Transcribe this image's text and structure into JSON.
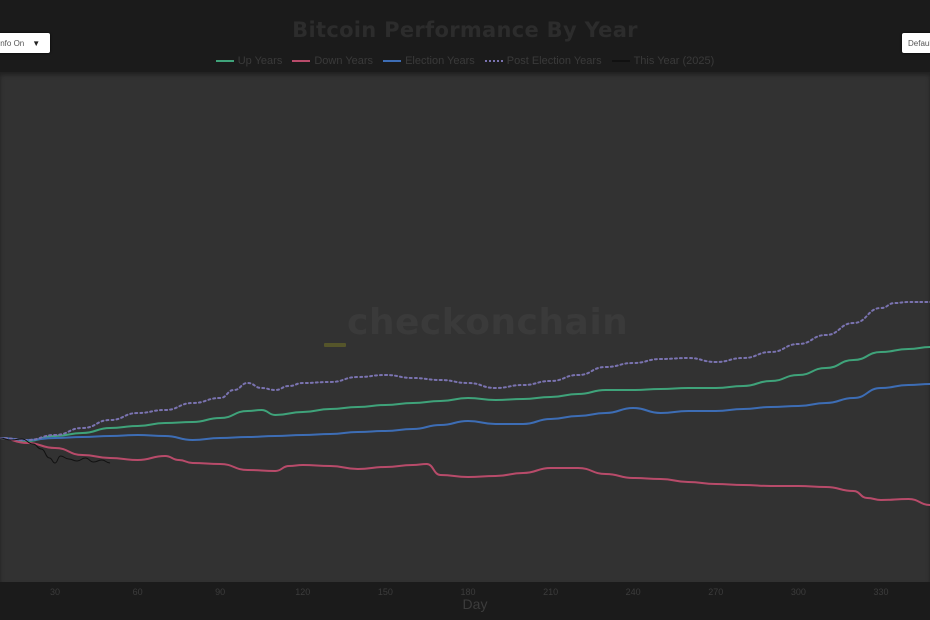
{
  "header": {
    "title": "Bitcoin Performance By Year",
    "left_dropdown": {
      "value": "Info On",
      "caret": "▼"
    },
    "right_dropdown": {
      "value": "Default"
    }
  },
  "watermark": {
    "text": "checkonchain"
  },
  "colors": {
    "page_bg": "#1b1b1b",
    "plot_bg": "#323232",
    "up_years": "#3fa37a",
    "down_years": "#b84b6a",
    "election_years": "#3d6db5",
    "post_election_years": "#7a73b0",
    "this_year": "#111111"
  },
  "legend": [
    {
      "label": "Up Years",
      "color": "#3fa37a",
      "style": "solid"
    },
    {
      "label": "Down Years",
      "color": "#b84b6a",
      "style": "solid"
    },
    {
      "label": "Election Years",
      "color": "#3d6db5",
      "style": "solid"
    },
    {
      "label": "Post Election Years",
      "color": "#7a73b0",
      "style": "dotted"
    },
    {
      "label": "This Year (2025)",
      "color": "#111111",
      "style": "solid"
    }
  ],
  "xaxis": {
    "label": "Day",
    "ticks": [
      "30",
      "60",
      "90",
      "120",
      "150",
      "180",
      "210",
      "240",
      "270",
      "300",
      "330"
    ]
  },
  "chart_data": {
    "type": "line",
    "title": "Bitcoin Performance By Year",
    "xlabel": "Day",
    "ylabel": "",
    "xlim": [
      10,
      348
    ],
    "ylim_note": "no y-axis shown; values are estimated relative performance (arbitrary units, 0 = start level)",
    "ylim": [
      -150,
      365
    ],
    "x_ticks": [
      30,
      60,
      90,
      120,
      150,
      180,
      210,
      240,
      270,
      300,
      330
    ],
    "grid": false,
    "legend_position": "top",
    "series": [
      {
        "name": "Up Years",
        "color": "#3fa37a",
        "style": "solid",
        "points": [
          [
            10,
            0
          ],
          [
            20,
            -3
          ],
          [
            30,
            2
          ],
          [
            40,
            5
          ],
          [
            50,
            10
          ],
          [
            60,
            12
          ],
          [
            70,
            15
          ],
          [
            80,
            16
          ],
          [
            90,
            20
          ],
          [
            100,
            27
          ],
          [
            105,
            28
          ],
          [
            110,
            23
          ],
          [
            120,
            26
          ],
          [
            130,
            29
          ],
          [
            140,
            31
          ],
          [
            150,
            33
          ],
          [
            160,
            35
          ],
          [
            170,
            37
          ],
          [
            180,
            40
          ],
          [
            190,
            38
          ],
          [
            200,
            39
          ],
          [
            210,
            41
          ],
          [
            220,
            44
          ],
          [
            230,
            48
          ],
          [
            240,
            48
          ],
          [
            250,
            49
          ],
          [
            260,
            50
          ],
          [
            270,
            50
          ],
          [
            280,
            52
          ],
          [
            290,
            57
          ],
          [
            300,
            63
          ],
          [
            310,
            70
          ],
          [
            320,
            78
          ],
          [
            330,
            86
          ],
          [
            340,
            89
          ],
          [
            348,
            91
          ]
        ]
      },
      {
        "name": "Down Years",
        "color": "#b84b6a",
        "style": "solid",
        "points": [
          [
            10,
            0
          ],
          [
            20,
            -5
          ],
          [
            30,
            -10
          ],
          [
            40,
            -17
          ],
          [
            50,
            -20
          ],
          [
            60,
            -22
          ],
          [
            70,
            -18
          ],
          [
            75,
            -22
          ],
          [
            80,
            -25
          ],
          [
            90,
            -26
          ],
          [
            100,
            -32
          ],
          [
            110,
            -33
          ],
          [
            115,
            -28
          ],
          [
            120,
            -27
          ],
          [
            130,
            -28
          ],
          [
            140,
            -31
          ],
          [
            150,
            -29
          ],
          [
            160,
            -27
          ],
          [
            165,
            -26
          ],
          [
            170,
            -37
          ],
          [
            180,
            -39
          ],
          [
            190,
            -38
          ],
          [
            200,
            -35
          ],
          [
            210,
            -30
          ],
          [
            220,
            -30
          ],
          [
            230,
            -36
          ],
          [
            240,
            -40
          ],
          [
            250,
            -41
          ],
          [
            260,
            -44
          ],
          [
            270,
            -46
          ],
          [
            280,
            -47
          ],
          [
            290,
            -48
          ],
          [
            300,
            -48
          ],
          [
            310,
            -49
          ],
          [
            320,
            -53
          ],
          [
            325,
            -60
          ],
          [
            330,
            -62
          ],
          [
            340,
            -61
          ],
          [
            348,
            -67
          ]
        ]
      },
      {
        "name": "Election Years",
        "color": "#3d6db5",
        "style": "solid",
        "points": [
          [
            10,
            0
          ],
          [
            20,
            -2
          ],
          [
            30,
            0
          ],
          [
            40,
            1
          ],
          [
            50,
            2
          ],
          [
            60,
            3
          ],
          [
            70,
            2
          ],
          [
            80,
            -2
          ],
          [
            90,
            0
          ],
          [
            100,
            1
          ],
          [
            110,
            2
          ],
          [
            120,
            3
          ],
          [
            130,
            4
          ],
          [
            140,
            6
          ],
          [
            150,
            7
          ],
          [
            160,
            9
          ],
          [
            170,
            13
          ],
          [
            180,
            17
          ],
          [
            190,
            14
          ],
          [
            200,
            14
          ],
          [
            210,
            19
          ],
          [
            220,
            22
          ],
          [
            230,
            25
          ],
          [
            240,
            30
          ],
          [
            250,
            25
          ],
          [
            260,
            27
          ],
          [
            270,
            27
          ],
          [
            280,
            29
          ],
          [
            290,
            31
          ],
          [
            300,
            32
          ],
          [
            310,
            35
          ],
          [
            320,
            40
          ],
          [
            330,
            50
          ],
          [
            340,
            53
          ],
          [
            348,
            54
          ]
        ]
      },
      {
        "name": "Post Election Years",
        "color": "#7a73b0",
        "style": "dotted",
        "points": [
          [
            10,
            0
          ],
          [
            20,
            -2
          ],
          [
            30,
            3
          ],
          [
            40,
            10
          ],
          [
            50,
            18
          ],
          [
            60,
            25
          ],
          [
            70,
            28
          ],
          [
            80,
            35
          ],
          [
            90,
            40
          ],
          [
            95,
            48
          ],
          [
            100,
            55
          ],
          [
            105,
            50
          ],
          [
            110,
            48
          ],
          [
            115,
            52
          ],
          [
            120,
            55
          ],
          [
            130,
            56
          ],
          [
            140,
            61
          ],
          [
            150,
            63
          ],
          [
            160,
            60
          ],
          [
            170,
            58
          ],
          [
            180,
            55
          ],
          [
            190,
            50
          ],
          [
            200,
            53
          ],
          [
            210,
            57
          ],
          [
            220,
            63
          ],
          [
            230,
            71
          ],
          [
            240,
            75
          ],
          [
            250,
            79
          ],
          [
            260,
            80
          ],
          [
            270,
            76
          ],
          [
            280,
            80
          ],
          [
            290,
            86
          ],
          [
            300,
            94
          ],
          [
            310,
            103
          ],
          [
            320,
            115
          ],
          [
            330,
            130
          ],
          [
            335,
            135
          ],
          [
            340,
            136
          ],
          [
            348,
            136
          ]
        ]
      },
      {
        "name": "This Year (2025)",
        "color": "#111111",
        "style": "solid",
        "points": [
          [
            10,
            0
          ],
          [
            14,
            -2
          ],
          [
            18,
            -1
          ],
          [
            22,
            -6
          ],
          [
            25,
            -11
          ],
          [
            28,
            -20
          ],
          [
            30,
            -25
          ],
          [
            32,
            -18
          ],
          [
            35,
            -21
          ],
          [
            38,
            -23
          ],
          [
            41,
            -20
          ],
          [
            44,
            -24
          ],
          [
            47,
            -22
          ],
          [
            50,
            -25
          ]
        ]
      }
    ]
  }
}
